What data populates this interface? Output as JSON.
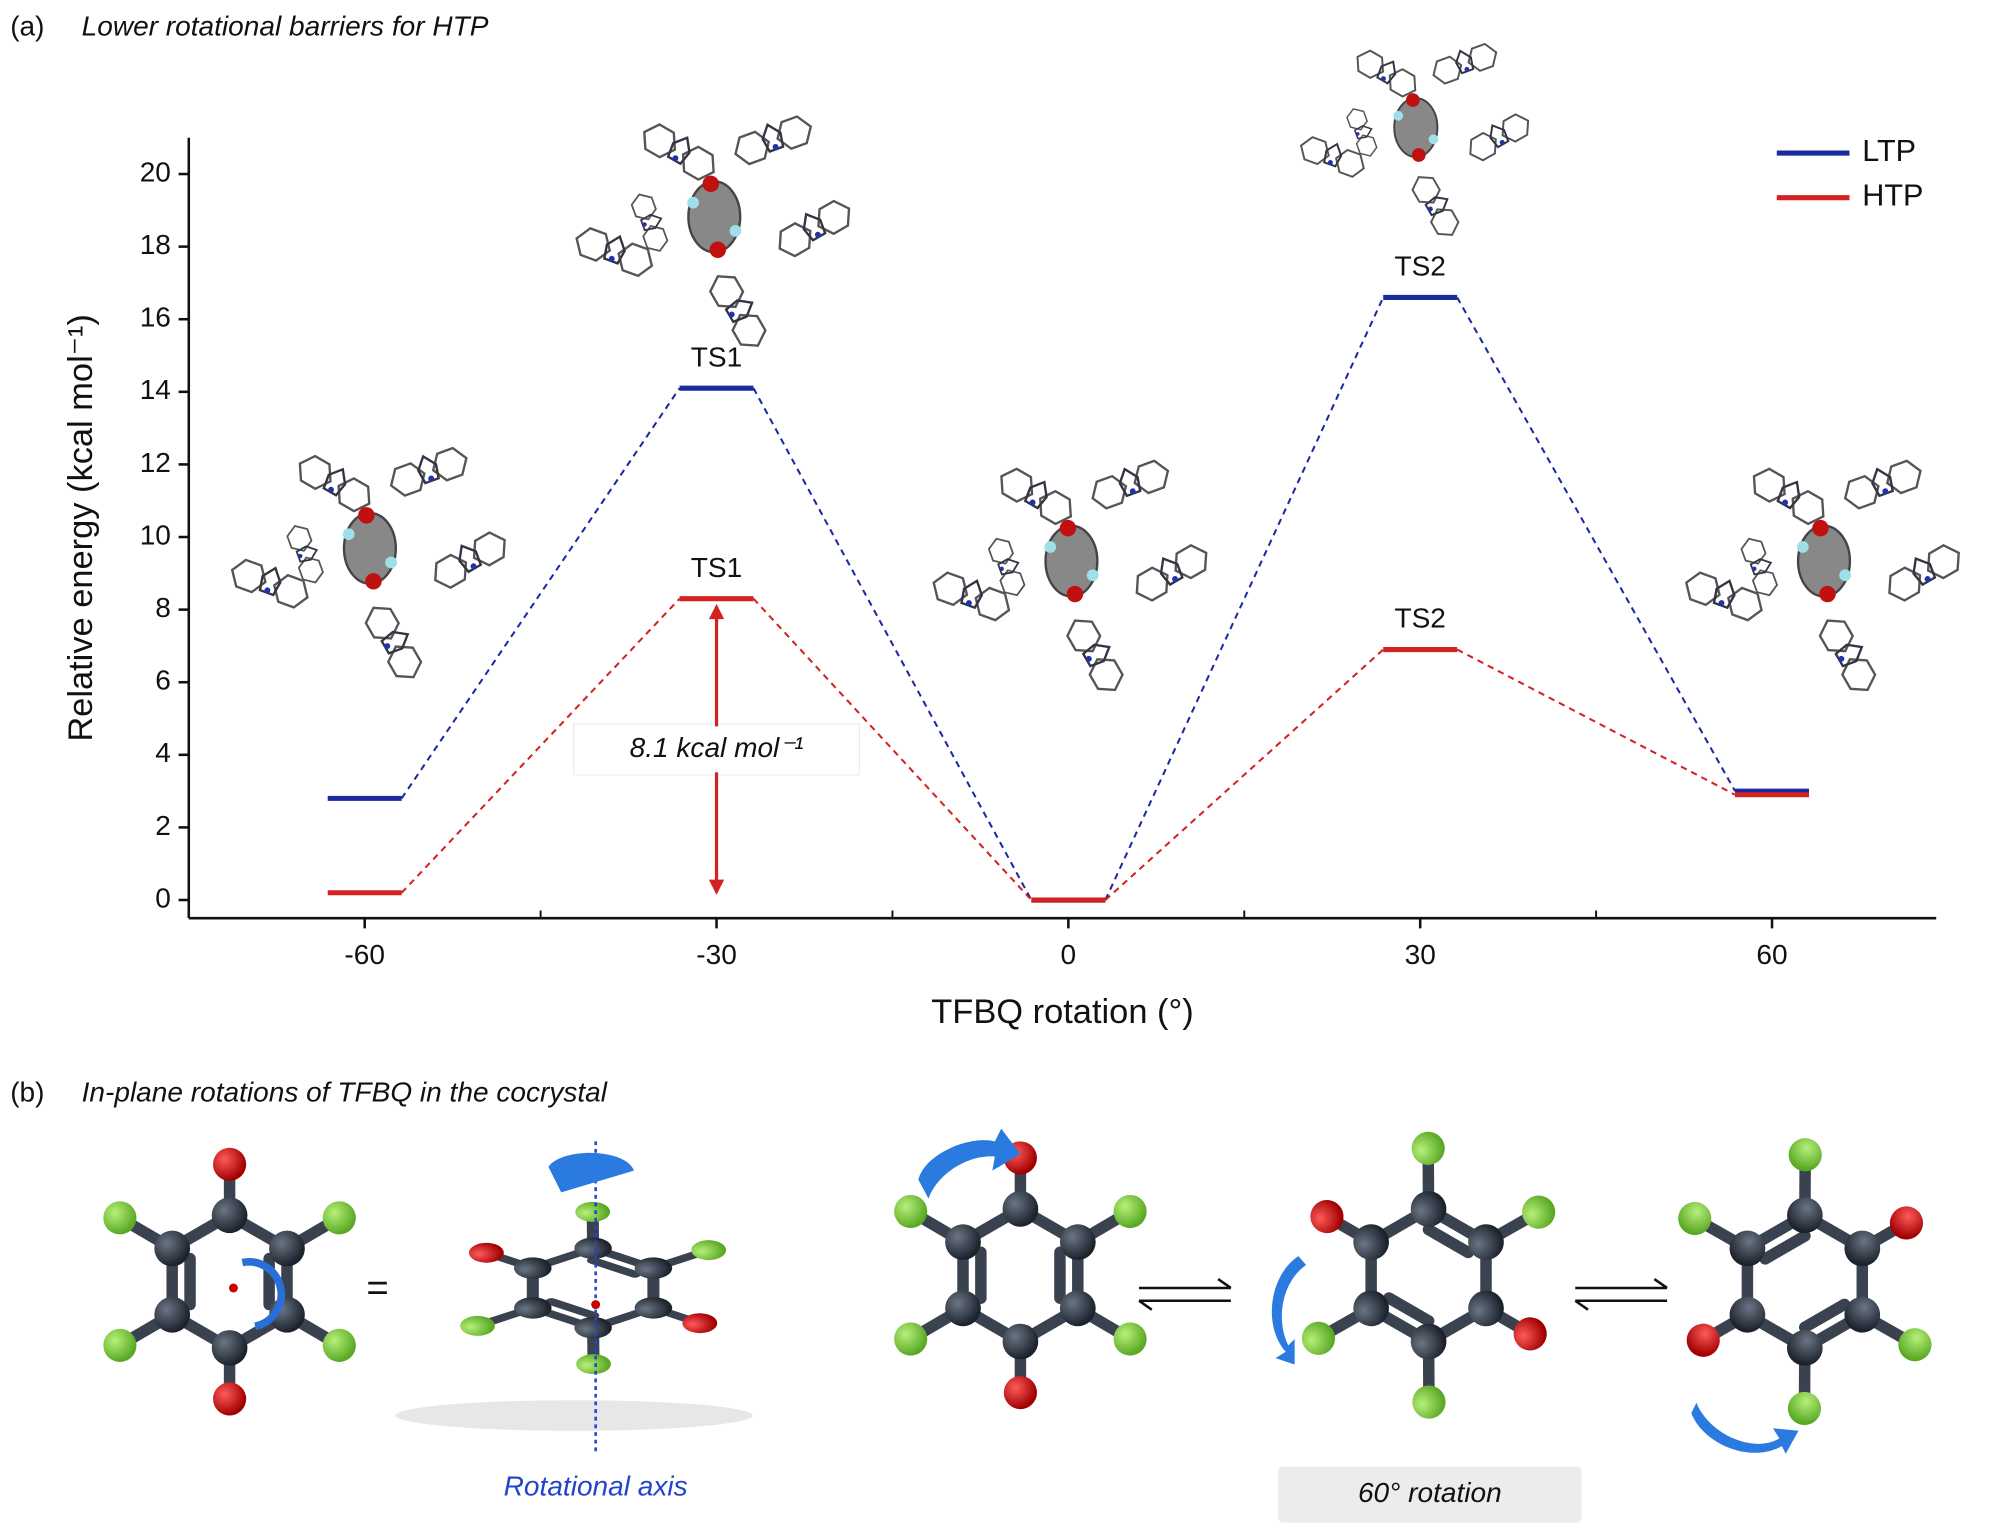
{
  "panel_a": {
    "label": "(a)",
    "title": "Lower rotational barriers for HTP"
  },
  "chart_data": {
    "type": "energy-levels",
    "x": [
      -60,
      -30,
      0,
      30,
      60
    ],
    "series": [
      {
        "name": "LTP",
        "color": "#1b2a9c",
        "values": [
          2.8,
          14.1,
          0,
          16.6,
          3.0
        ],
        "point_labels": [
          null,
          "TS1",
          null,
          "TS2",
          null
        ]
      },
      {
        "name": "HTP",
        "color": "#d42121",
        "values": [
          0.2,
          8.3,
          0,
          6.9,
          2.9
        ],
        "point_labels": [
          null,
          "TS1",
          null,
          "TS2",
          null
        ]
      }
    ],
    "xlabel": "TFBQ rotation (°)",
    "ylabel": "Relative energy (kcal mol⁻¹)",
    "xlim": [
      -75,
      74
    ],
    "ylim": [
      -0.5,
      21
    ],
    "xticks": [
      -60,
      -30,
      0,
      30,
      60
    ],
    "xminorticks": [
      -45,
      -15,
      15,
      45
    ],
    "yticks": [
      0,
      2,
      4,
      6,
      8,
      10,
      12,
      14,
      16,
      18,
      20
    ],
    "annotation": "8.1 kcal mol⁻¹",
    "legend": "upper right",
    "grid": false
  },
  "panel_b": {
    "label": "(b)",
    "title": "In-plane rotations of TFBQ in the cocrystal",
    "equals": "=",
    "axis_label": "Rotational axis",
    "rotation_label": "60° rotation"
  }
}
